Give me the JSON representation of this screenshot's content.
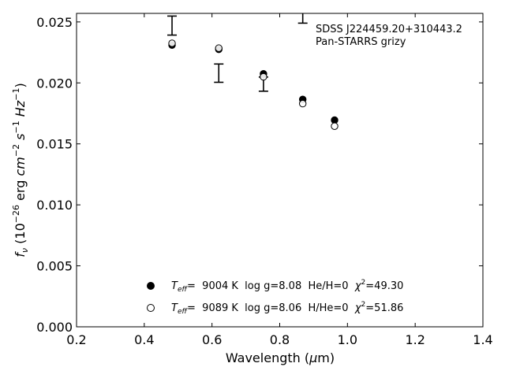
{
  "chart_data": {
    "type": "scatter",
    "xlabel": "Wavelength",
    "xlabel_unit_prefix": "μ",
    "xlabel_unit": "m",
    "ylabel_parts": {
      "f": "f",
      "nu": "ν",
      "open": "(10",
      "exp26": "−26",
      "erg": " erg ",
      "cm": "cm",
      "exp2": "−2",
      "s": " s",
      "exp1": "−1",
      "hz": " Hz",
      "exp1b": "−1",
      "close": ")"
    },
    "xlim": [
      0.2,
      1.4
    ],
    "ylim": [
      0.0,
      0.0257
    ],
    "xticks": [
      0.2,
      0.4,
      0.6,
      0.8,
      1.0,
      1.2,
      1.4
    ],
    "xtick_labels": [
      "0.2",
      "0.4",
      "0.6",
      "0.8",
      "1.0",
      "1.2",
      "1.4"
    ],
    "yticks": [
      0.0,
      0.005,
      0.01,
      0.015,
      0.02,
      0.025
    ],
    "ytick_labels": [
      "0.000",
      "0.005",
      "0.010",
      "0.015",
      "0.020",
      "0.025"
    ],
    "grid": false,
    "legend_position": "bottom-center",
    "annotation_lines": [
      "SDSS J224459.20+310443.2",
      "Pan-STARRS grizy"
    ],
    "errorbars": [
      {
        "x": 0.482,
        "y": 0.0247,
        "yerr": 0.00078
      },
      {
        "x": 0.62,
        "y": 0.0208,
        "yerr": 0.00075
      },
      {
        "x": 0.752,
        "y": 0.0199,
        "yerr": 0.00058
      },
      {
        "x": 0.868,
        "y": 0.0257,
        "yerr": 0.0008
      }
    ],
    "series": [
      {
        "marker": "filled-circle",
        "x": [
          0.482,
          0.62,
          0.752,
          0.868,
          0.962
        ],
        "y": [
          0.0231,
          0.02275,
          0.02075,
          0.01865,
          0.01695
        ],
        "legend": {
          "teff_symbol": "T",
          "teff_sub": "eff",
          "eq": "=",
          "rest": "9004 K  log g=8.08  He/H=0  ",
          "chi": "χ",
          "chi_exp": "2",
          "chi_val": "=49.30"
        }
      },
      {
        "marker": "open-circle",
        "x": [
          0.482,
          0.62,
          0.752,
          0.868,
          0.962
        ],
        "y": [
          0.02325,
          0.02285,
          0.0205,
          0.0183,
          0.01645
        ],
        "legend": {
          "teff_symbol": "T",
          "teff_sub": "eff",
          "eq": "=",
          "rest": "9089 K  log g=8.06  H/He=0  ",
          "chi": "χ",
          "chi_exp": "2",
          "chi_val": "=51.86"
        }
      }
    ]
  }
}
